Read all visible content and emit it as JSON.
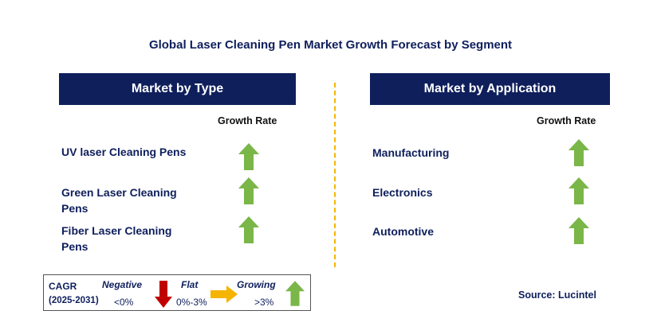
{
  "title": "Global Laser Cleaning Pen Market Growth Forecast by Segment",
  "colors": {
    "header_bg": "#0f1f5c",
    "growing": "#7ab648",
    "negative": "#c00000",
    "flat": "#f5b400"
  },
  "left_panel": {
    "header": "Market by Type",
    "growth_label": "Growth Rate",
    "rows": [
      {
        "label": "UV laser Cleaning Pens",
        "trend_icon": "green-up-arrow"
      },
      {
        "label": "Green Laser Cleaning Pens",
        "trend_icon": "green-up-arrow"
      },
      {
        "label": "Fiber Laser Cleaning Pens",
        "trend_icon": "green-up-arrow"
      }
    ]
  },
  "right_panel": {
    "header": "Market by Application",
    "growth_label": "Growth Rate",
    "rows": [
      {
        "label": "Manufacturing",
        "trend_icon": "green-up-arrow"
      },
      {
        "label": "Electronics",
        "trend_icon": "green-up-arrow"
      },
      {
        "label": "Automotive",
        "trend_icon": "green-up-arrow"
      }
    ]
  },
  "legend": {
    "cagr": "CAGR",
    "period": "(2025-2031)",
    "negative_label": "Negative",
    "negative_range": "<0%",
    "flat_label": "Flat",
    "flat_range": "0%-3%",
    "growing_label": "Growing",
    "growing_range": ">3%"
  },
  "source": "Source: Lucintel"
}
